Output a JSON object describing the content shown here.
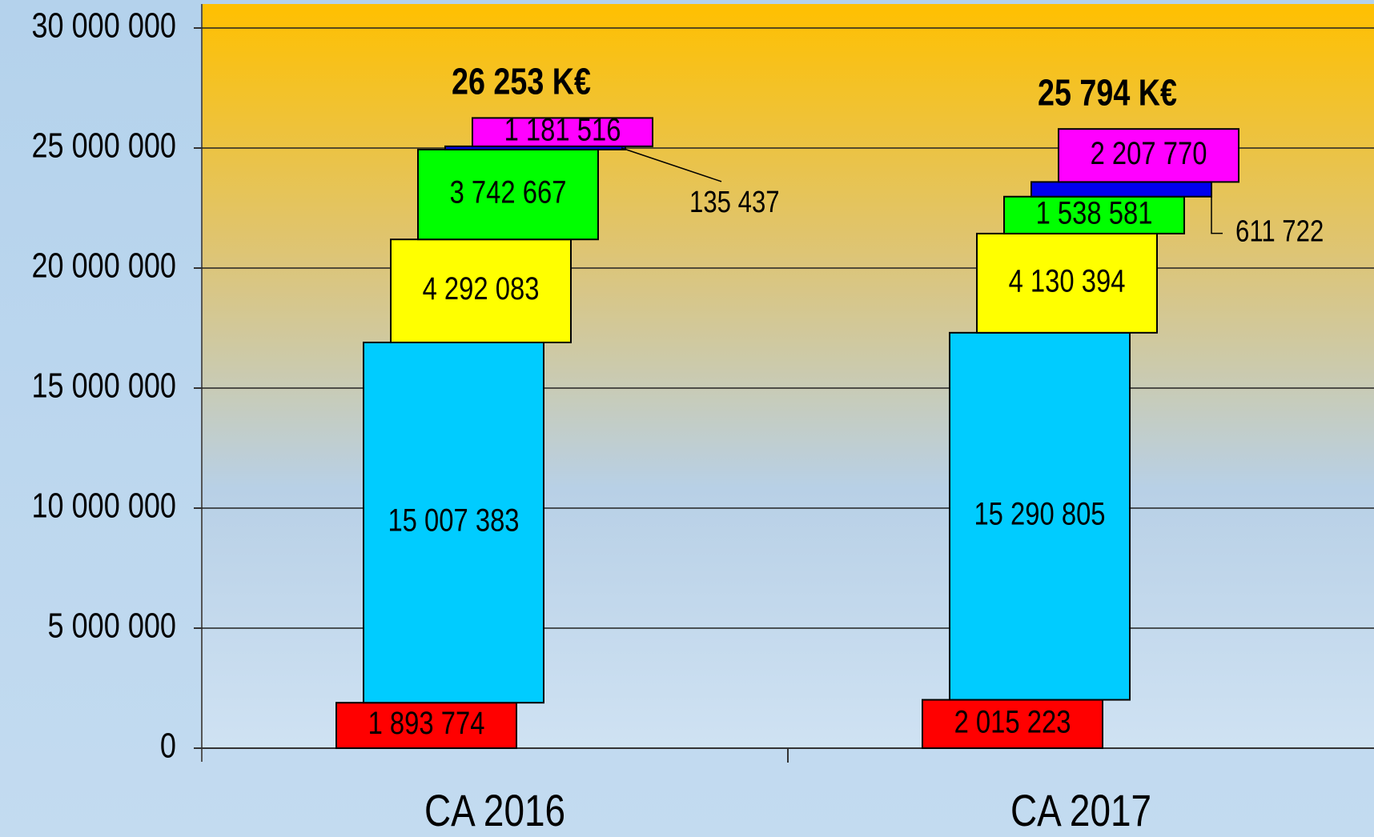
{
  "chart_data": {
    "type": "stacked_bar",
    "categories": [
      "CA 2016",
      "CA 2017"
    ],
    "series": [
      {
        "color": "#ff0000",
        "values": [
          1893774,
          2015223
        ],
        "value_labels": [
          "1 893 774",
          "2 015 223"
        ]
      },
      {
        "color": "#00ccff",
        "values": [
          15007383,
          15290805
        ],
        "value_labels": [
          "15 007 383",
          "15 290 805"
        ]
      },
      {
        "color": "#ffff00",
        "values": [
          4292083,
          4130394
        ],
        "value_labels": [
          "4 292 083",
          "4 130 394"
        ]
      },
      {
        "color": "#00ff00",
        "values": [
          3742667,
          1538581
        ],
        "value_labels": [
          "3 742 667",
          "1 538 581"
        ]
      },
      {
        "color": "#0000ee",
        "values": [
          135437,
          611722
        ],
        "value_labels": [
          "135 437",
          "611 722"
        ]
      },
      {
        "color": "#ff00ff",
        "values": [
          1181516,
          2207770
        ],
        "value_labels": [
          "1 181 516",
          "2 207 770"
        ]
      }
    ],
    "annotations": [
      "26 253 K€",
      "25 794 K€"
    ],
    "ylim": [
      0,
      30000000
    ],
    "yticks": [
      0,
      {
        "value": 5000000,
        "label": "5 000 000"
      },
      {
        "value": 10000000,
        "label": "10 000 000"
      },
      {
        "value": 15000000,
        "label": "15 000 000"
      },
      {
        "value": 20000000,
        "label": "20 000 000"
      },
      {
        "value": 25000000,
        "label": "25 000 000"
      },
      {
        "value": 30000000,
        "label": "30 000 000"
      }
    ],
    "grid": true
  }
}
